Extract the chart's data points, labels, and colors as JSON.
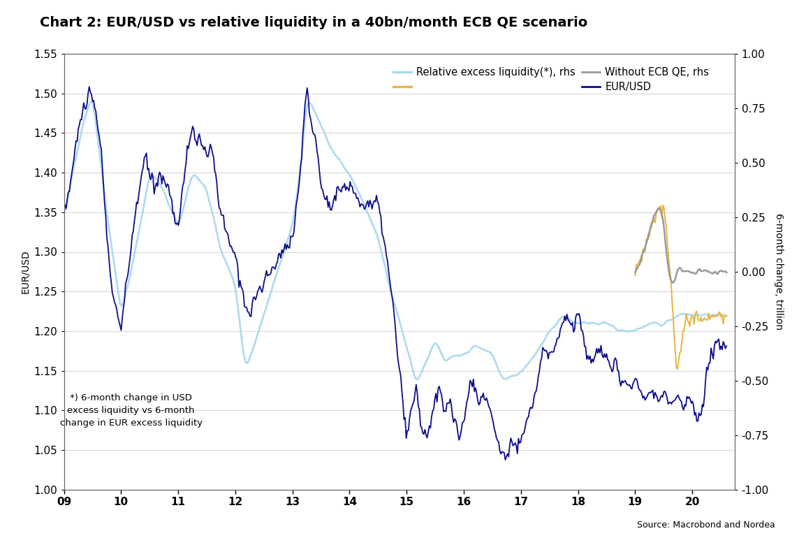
{
  "title": "Chart 2: EUR/USD vs relative liquidity in a 40bn/month ECB QE scenario",
  "ylabel_left": "EUR/USD",
  "ylabel_right": "6-month change, trillion",
  "source_text": "Source: Macrobond and Nordea",
  "annotation": "*) 6-month change in USD\nexcess liquidity vs 6-month\nchange in EUR excess liquidity",
  "xlim": [
    2009.0,
    2020.75
  ],
  "ylim_left": [
    1.0,
    1.55
  ],
  "ylim_right": [
    -1.0,
    1.0
  ],
  "xticks": [
    2009,
    2010,
    2011,
    2012,
    2013,
    2014,
    2015,
    2016,
    2017,
    2018,
    2019,
    2020
  ],
  "xticklabels": [
    "09",
    "10",
    "11",
    "12",
    "13",
    "14",
    "15",
    "16",
    "17",
    "18",
    "19",
    "20"
  ],
  "yticks_left": [
    1.0,
    1.05,
    1.1,
    1.15,
    1.2,
    1.25,
    1.3,
    1.35,
    1.4,
    1.45,
    1.5,
    1.55
  ],
  "yticks_right": [
    -1.0,
    -0.75,
    -0.5,
    -0.25,
    0.0,
    0.25,
    0.5,
    0.75,
    1.0
  ],
  "color_eurusd": "#0d0d8a",
  "color_liquidity": "#a8d8f0",
  "color_without_qe": "#999999",
  "color_yellow": "#e8b84b",
  "background_color": "#ffffff",
  "grid_color": "#d8d8d8",
  "title_fontsize": 14,
  "axis_fontsize": 10,
  "tick_fontsize": 11,
  "legend_fontsize": 10.5
}
